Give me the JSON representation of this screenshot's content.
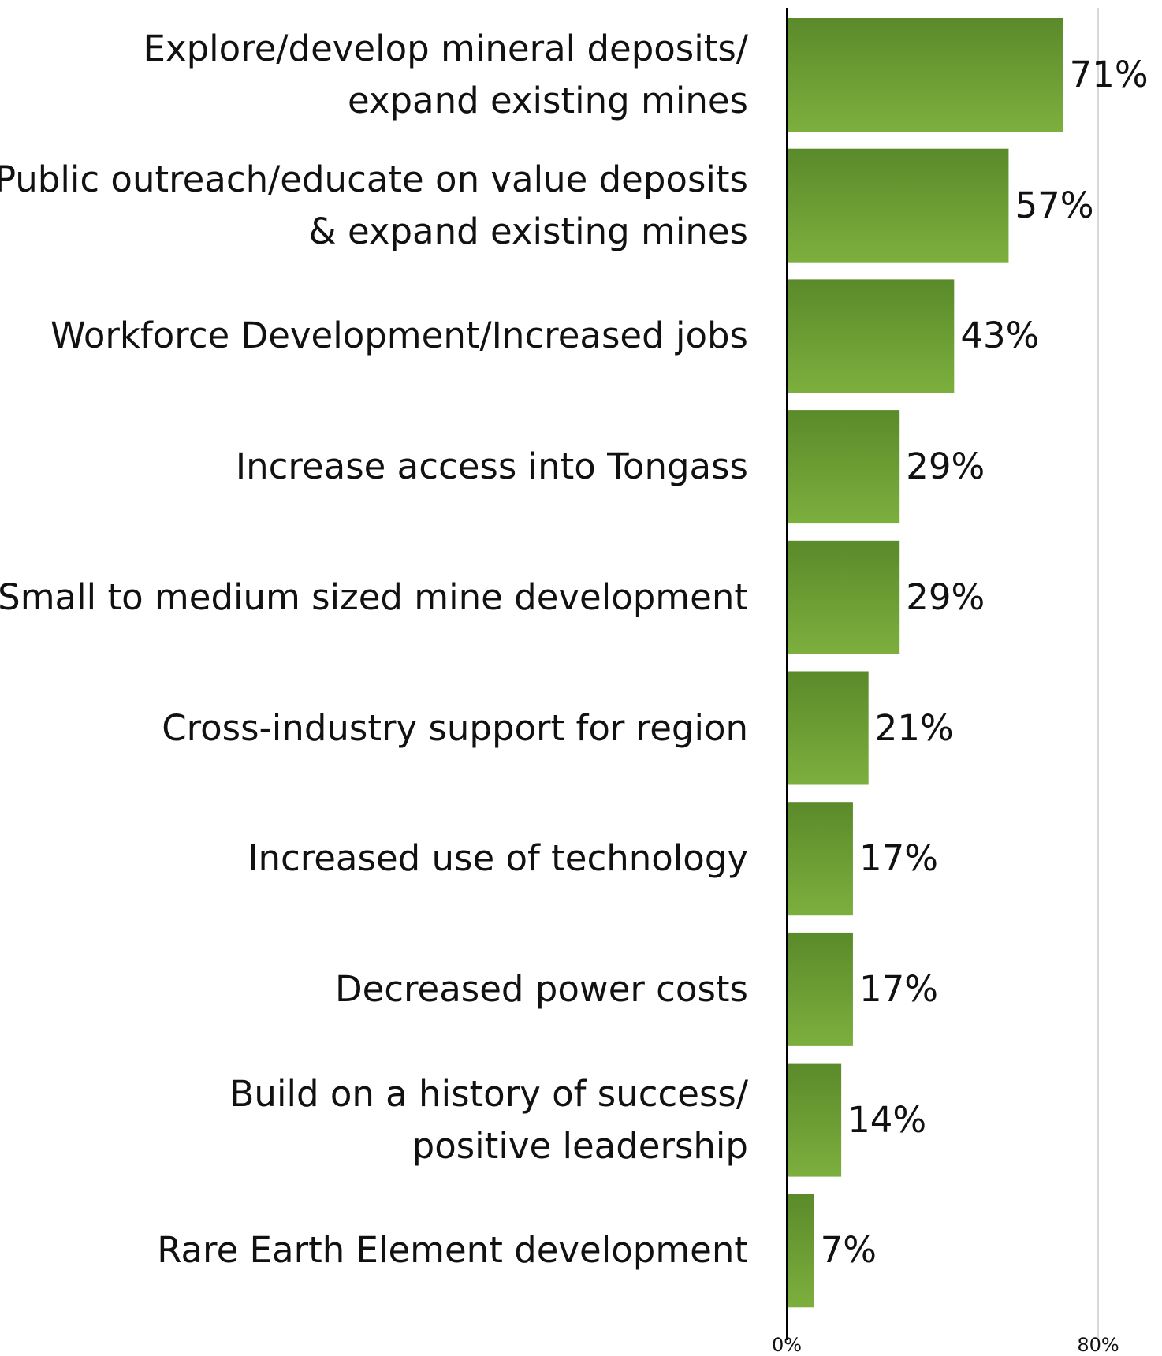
{
  "chart_data": {
    "type": "bar",
    "orientation": "horizontal",
    "categories": [
      [
        "Explore/develop mineral deposits/",
        "expand existing mines"
      ],
      [
        "Public outreach/educate on value deposits",
        "& expand existing mines"
      ],
      [
        "Workforce Development/Increased jobs"
      ],
      [
        "Increase access into Tongass"
      ],
      [
        "Small to medium sized mine development"
      ],
      [
        "Cross-industry support for region"
      ],
      [
        "Increased use of technology"
      ],
      [
        "Decreased power costs"
      ],
      [
        "Build on a history of success/",
        "positive leadership"
      ],
      [
        "Rare Earth Element development"
      ]
    ],
    "values": [
      71,
      57,
      43,
      29,
      29,
      21,
      17,
      17,
      14,
      7
    ],
    "value_labels": [
      "71%",
      "57%",
      "43%",
      "29%",
      "29%",
      "21%",
      "17%",
      "17%",
      "14%",
      "7%"
    ],
    "xlim": [
      0,
      80
    ],
    "x_tick_labels": [
      "0%",
      "80%"
    ],
    "grid": "vertical line at 80%",
    "legend": "none",
    "colors": {
      "bar_top": "#5a8a2a",
      "bar_bottom": "#7daf3e",
      "axis": "#000000",
      "gridline": "#d9d9d9"
    }
  }
}
